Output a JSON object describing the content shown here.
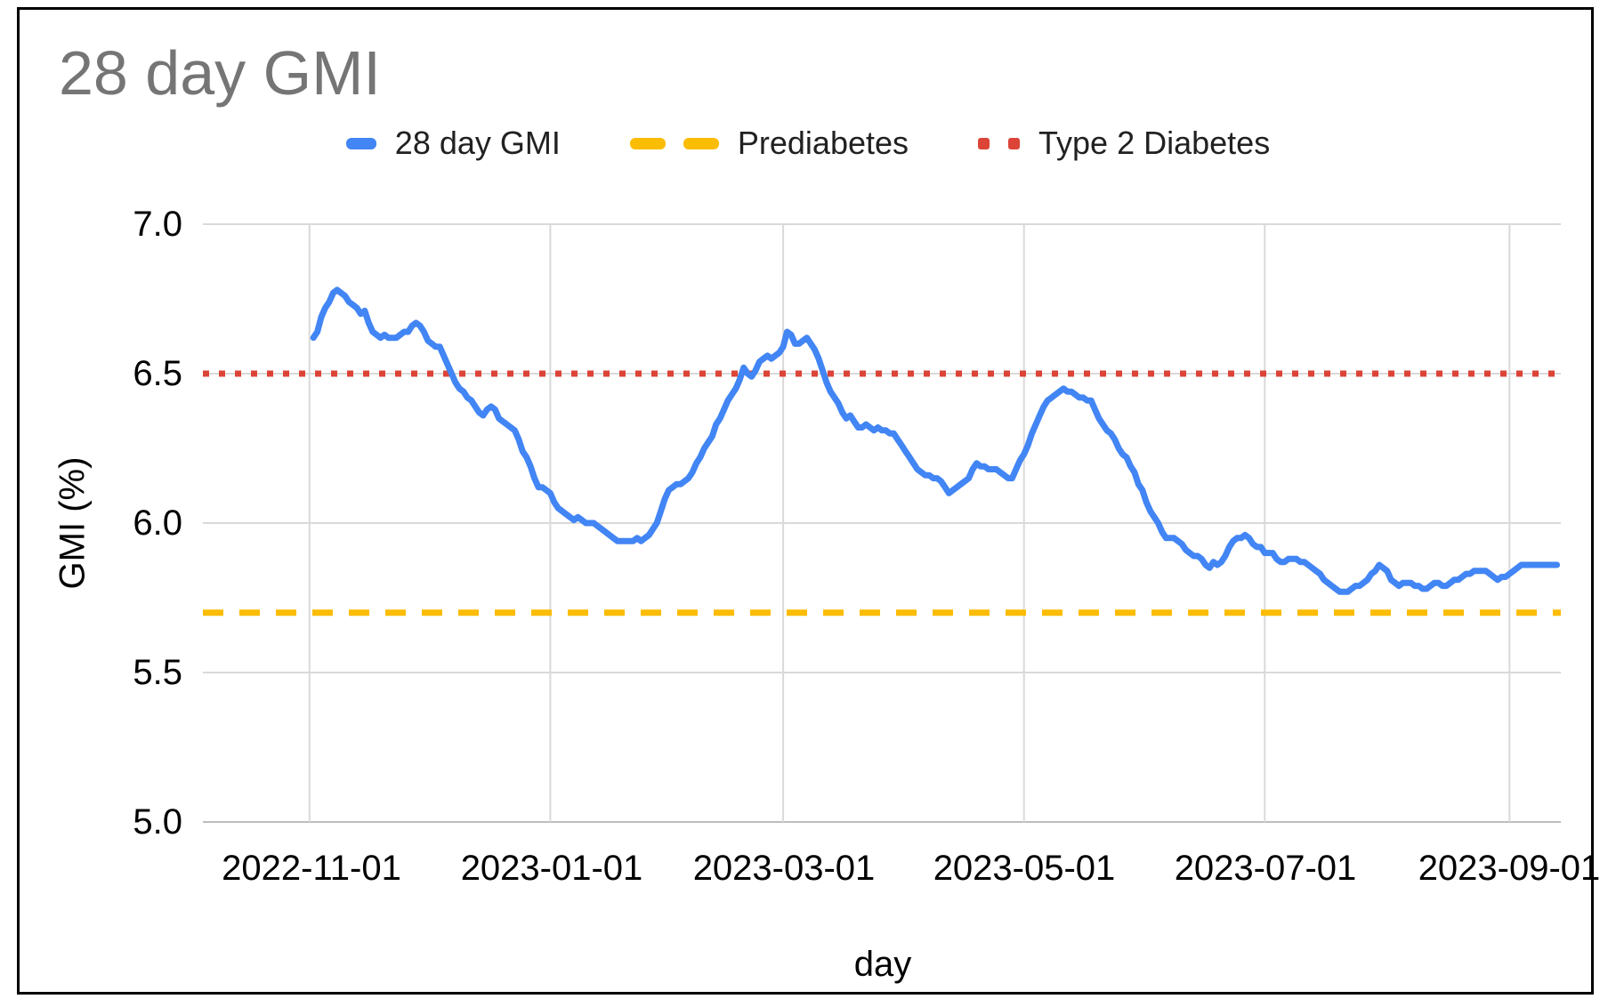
{
  "chart_data": {
    "type": "line",
    "title": "28 day GMI",
    "xlabel": "day",
    "ylabel": "GMI (%)",
    "ylim": [
      5.0,
      7.0
    ],
    "grid": true,
    "legend_position": "top",
    "colors": {
      "series_blue": "#4285F4",
      "prediabetes_orange": "#FBBC04",
      "type2_red": "#DC4437",
      "gridline": "#D9D9D9",
      "baseline": "#BDBDBD",
      "title_gray": "#757575",
      "axis_text": "#000000"
    },
    "y_ticks": [
      "7.0",
      "6.5",
      "6.0",
      "5.5",
      "5.0"
    ],
    "y_tick_values": [
      7.0,
      6.5,
      6.0,
      5.5,
      5.0
    ],
    "x_ticks": [
      "2022-11-01",
      "2023-01-01",
      "2023-03-01",
      "2023-05-01",
      "2023-07-01",
      "2023-09-01"
    ],
    "x_domain": [
      "2022-10-05",
      "2023-09-14"
    ],
    "series": [
      {
        "name": "28 day GMI",
        "style": "solid",
        "color": "#4285F4",
        "start_date": "2022-11-02",
        "daily_values": [
          6.62,
          6.64,
          6.69,
          6.72,
          6.74,
          6.77,
          6.78,
          6.77,
          6.76,
          6.74,
          6.73,
          6.72,
          6.7,
          6.71,
          6.67,
          6.64,
          6.63,
          6.62,
          6.63,
          6.62,
          6.62,
          6.62,
          6.63,
          6.64,
          6.64,
          6.66,
          6.67,
          6.66,
          6.64,
          6.61,
          6.6,
          6.59,
          6.59,
          6.56,
          6.53,
          6.5,
          6.47,
          6.45,
          6.44,
          6.42,
          6.41,
          6.39,
          6.37,
          6.36,
          6.38,
          6.39,
          6.38,
          6.35,
          6.34,
          6.33,
          6.32,
          6.31,
          6.28,
          6.24,
          6.22,
          6.19,
          6.15,
          6.12,
          6.12,
          6.11,
          6.1,
          6.07,
          6.05,
          6.04,
          6.03,
          6.02,
          6.01,
          6.02,
          6.01,
          6.0,
          6.0,
          6.0,
          5.99,
          5.98,
          5.97,
          5.96,
          5.95,
          5.94,
          5.94,
          5.94,
          5.94,
          5.94,
          5.95,
          5.94,
          5.95,
          5.96,
          5.98,
          6.0,
          6.04,
          6.08,
          6.11,
          6.12,
          6.13,
          6.13,
          6.14,
          6.15,
          6.17,
          6.2,
          6.22,
          6.25,
          6.27,
          6.29,
          6.33,
          6.35,
          6.38,
          6.41,
          6.43,
          6.45,
          6.48,
          6.52,
          6.5,
          6.49,
          6.51,
          6.54,
          6.55,
          6.56,
          6.55,
          6.56,
          6.57,
          6.59,
          6.64,
          6.63,
          6.6,
          6.6,
          6.61,
          6.62,
          6.6,
          6.58,
          6.55,
          6.51,
          6.47,
          6.44,
          6.42,
          6.4,
          6.37,
          6.35,
          6.36,
          6.34,
          6.32,
          6.32,
          6.33,
          6.32,
          6.31,
          6.32,
          6.31,
          6.31,
          6.3,
          6.3,
          6.28,
          6.26,
          6.24,
          6.22,
          6.2,
          6.18,
          6.17,
          6.16,
          6.16,
          6.15,
          6.15,
          6.14,
          6.12,
          6.1,
          6.11,
          6.12,
          6.13,
          6.14,
          6.15,
          6.18,
          6.2,
          6.19,
          6.19,
          6.18,
          6.18,
          6.18,
          6.17,
          6.16,
          6.15,
          6.15,
          6.18,
          6.21,
          6.23,
          6.26,
          6.3,
          6.33,
          6.36,
          6.39,
          6.41,
          6.42,
          6.43,
          6.44,
          6.45,
          6.44,
          6.44,
          6.43,
          6.42,
          6.42,
          6.41,
          6.41,
          6.38,
          6.35,
          6.33,
          6.31,
          6.3,
          6.28,
          6.25,
          6.23,
          6.22,
          6.19,
          6.17,
          6.13,
          6.11,
          6.07,
          6.04,
          6.02,
          6.0,
          5.97,
          5.95,
          5.95,
          5.95,
          5.94,
          5.93,
          5.91,
          5.9,
          5.89,
          5.89,
          5.88,
          5.86,
          5.85,
          5.87,
          5.86,
          5.87,
          5.89,
          5.92,
          5.94,
          5.95,
          5.95,
          5.96,
          5.95,
          5.93,
          5.92,
          5.92,
          5.9,
          5.9,
          5.9,
          5.88,
          5.87,
          5.87,
          5.88,
          5.88,
          5.88,
          5.87,
          5.87,
          5.86,
          5.85,
          5.84,
          5.83,
          5.81,
          5.8,
          5.79,
          5.78,
          5.77,
          5.77,
          5.77,
          5.78,
          5.79,
          5.79,
          5.8,
          5.81,
          5.83,
          5.84,
          5.86,
          5.85,
          5.84,
          5.81,
          5.8,
          5.79,
          5.8,
          5.8,
          5.8,
          5.79,
          5.79,
          5.78,
          5.78,
          5.79,
          5.8,
          5.8,
          5.79,
          5.79,
          5.8,
          5.81,
          5.81,
          5.82,
          5.83,
          5.83,
          5.84,
          5.84,
          5.84,
          5.84,
          5.83,
          5.82,
          5.81,
          5.82,
          5.82,
          5.83,
          5.84,
          5.85,
          5.86,
          5.86,
          5.86,
          5.86,
          5.86,
          5.86,
          5.86,
          5.86,
          5.86,
          5.86
        ]
      },
      {
        "name": "Prediabetes",
        "style": "dashed",
        "color": "#FBBC04",
        "value": 5.7
      },
      {
        "name": "Type 2 Diabetes",
        "style": "dotted",
        "color": "#DC4437",
        "value": 6.5
      }
    ]
  }
}
